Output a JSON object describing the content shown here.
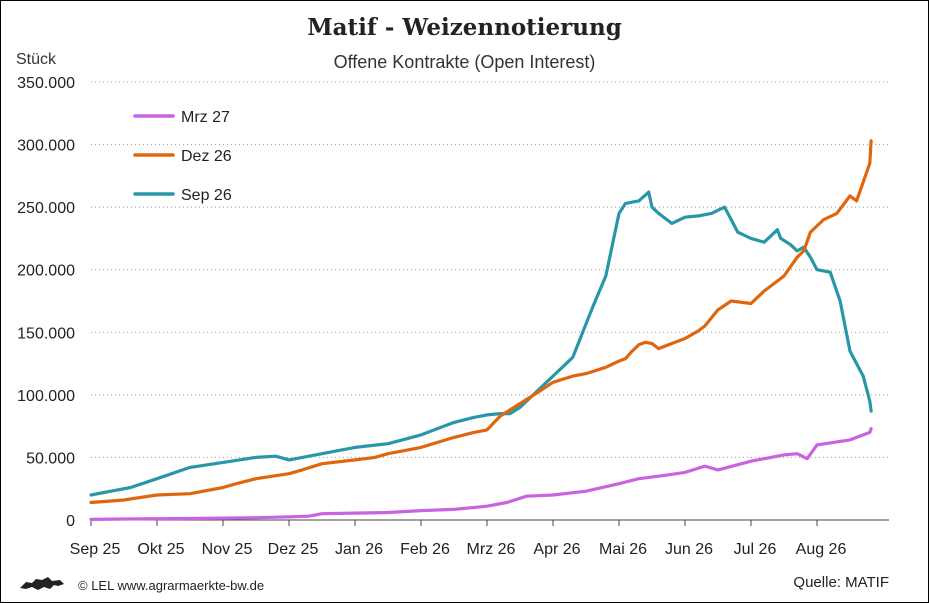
{
  "title": "Matif - Weizennotierung",
  "subtitle": "Offene Kontrakte (Open Interest)",
  "y_unit": "Stück",
  "credit": "© LEL www.agrarmaerkte-bw.de",
  "source": "Quelle:  MATIF",
  "logo_icon": "lion-logo-icon",
  "chart_data": {
    "type": "line",
    "title": "Matif - Weizennotierung",
    "subtitle": "Offene Kontrakte (Open Interest)",
    "ylabel": "Stück",
    "ylim": [
      0,
      350000
    ],
    "yticks": [
      0,
      50000,
      100000,
      150000,
      200000,
      250000,
      300000,
      350000
    ],
    "ytick_labels": [
      "0",
      "50.000",
      "100.000",
      "150.000",
      "200.000",
      "250.000",
      "300.000",
      "350.000"
    ],
    "xticks": [
      0,
      1,
      2,
      3,
      4,
      5,
      6,
      7,
      8,
      9,
      10,
      11
    ],
    "xtick_labels": [
      "Sep 25",
      "Okt 25",
      "Nov 25",
      "Dez 25",
      "Jan 26",
      "Feb 26",
      "Mrz 26",
      "Apr 26",
      "Mai 26",
      "Jun 26",
      "Jul 26",
      "Aug 26"
    ],
    "xlim": [
      0,
      12.05
    ],
    "grid": "horizontal dotted",
    "legend_position": "top-left",
    "series": [
      {
        "name": "Mrz 27",
        "color": "#c864e0",
        "x": [
          0,
          0.5,
          1,
          1.5,
          2,
          2.5,
          2.8,
          3,
          3.3,
          3.5,
          4,
          4.5,
          5,
          5.5,
          6,
          6.3,
          6.6,
          7,
          7.5,
          8,
          8.3,
          8.6,
          9,
          9.3,
          9.5,
          10,
          10.3,
          10.5,
          10.7,
          10.85,
          11,
          11.5,
          11.7,
          11.8,
          11.82
        ],
        "y": [
          500,
          800,
          1000,
          1200,
          1500,
          1800,
          2200,
          2500,
          3000,
          5000,
          5500,
          6000,
          7500,
          8500,
          11000,
          14000,
          19000,
          20000,
          23000,
          29000,
          33000,
          35000,
          38000,
          43000,
          40000,
          47000,
          50000,
          52000,
          53000,
          49000,
          60000,
          64000,
          68000,
          70000,
          73000
        ]
      },
      {
        "name": "Dez 26",
        "color": "#e0660d",
        "x": [
          0,
          0.5,
          1,
          1.5,
          2,
          2.2,
          2.5,
          3,
          3.2,
          3.5,
          4,
          4.3,
          4.5,
          5,
          5.5,
          5.8,
          6,
          6.2,
          6.5,
          6.8,
          7,
          7.3,
          7.5,
          7.8,
          8,
          8.1,
          8.2,
          8.3,
          8.4,
          8.5,
          8.6,
          8.8,
          9,
          9.2,
          9.3,
          9.5,
          9.7,
          10,
          10.2,
          10.5,
          10.7,
          10.8,
          10.9,
          11,
          11.1,
          11.3,
          11.5,
          11.6,
          11.7,
          11.8,
          11.82
        ],
        "y": [
          14000,
          16000,
          20000,
          21000,
          26000,
          29000,
          33000,
          37000,
          40000,
          45000,
          48000,
          50000,
          53000,
          58000,
          66000,
          70000,
          72000,
          83000,
          93000,
          103000,
          110000,
          115000,
          117000,
          122000,
          127000,
          129000,
          135000,
          140000,
          142000,
          141000,
          137000,
          141000,
          145000,
          151000,
          155000,
          168000,
          175000,
          173000,
          183000,
          195000,
          210000,
          215000,
          230000,
          235000,
          240000,
          245000,
          259000,
          255000,
          270000,
          285000,
          303000
        ]
      },
      {
        "name": "Sep 26",
        "color": "#2797a8",
        "x": [
          0,
          0.3,
          0.6,
          1,
          1.5,
          2,
          2.5,
          2.8,
          3,
          3.5,
          4,
          4.5,
          5,
          5.5,
          5.8,
          6,
          6.2,
          6.35,
          6.5,
          6.8,
          7,
          7.3,
          7.6,
          7.8,
          8,
          8.1,
          8.3,
          8.45,
          8.5,
          8.6,
          8.8,
          9,
          9.2,
          9.4,
          9.6,
          9.65,
          9.8,
          10,
          10.2,
          10.4,
          10.45,
          10.6,
          10.7,
          10.8,
          10.9,
          11,
          11.2,
          11.35,
          11.5,
          11.6,
          11.7,
          11.8,
          11.82
        ],
        "y": [
          20000,
          23000,
          26000,
          33000,
          42000,
          46000,
          50000,
          51000,
          48000,
          53000,
          58000,
          61000,
          68000,
          78000,
          82000,
          84000,
          85000,
          85000,
          90000,
          105000,
          115000,
          130000,
          170000,
          195000,
          245000,
          253000,
          255000,
          262000,
          250000,
          245000,
          237000,
          242000,
          243000,
          245000,
          250000,
          245000,
          230000,
          225000,
          222000,
          232000,
          225000,
          220000,
          215000,
          218000,
          210000,
          200000,
          198000,
          175000,
          135000,
          125000,
          115000,
          95000,
          87000
        ]
      }
    ]
  }
}
